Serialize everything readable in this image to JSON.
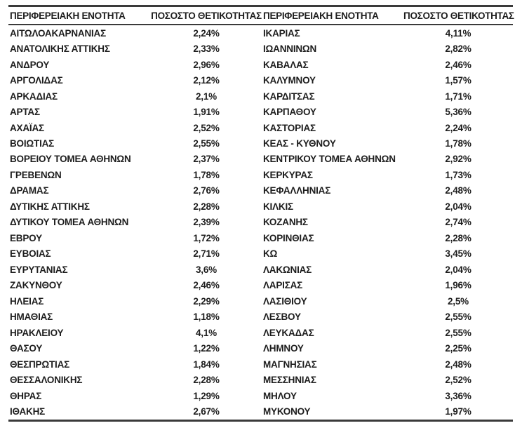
{
  "colors": {
    "text": "#1d1d1d",
    "rule": "#3a3a3a",
    "background": "#ffffff"
  },
  "table": {
    "columns": [
      "ΠΕΡΙΦΕΡΕΙΑΚΗ ΕΝΟΤΗΤΑ",
      "ΠΟΣΟΣΤΟ ΘΕΤΙΚΟΤΗΤΑΣ",
      "ΠΕΡΙΦΕΡΕΙΑΚΗ ΕΝΟΤΗΤΑ",
      "ΠΟΣΟΣΤΟ ΘΕΤΙΚΟΤΗΤΑΣ"
    ],
    "rows": [
      {
        "left_region": "ΑΙΤΩΛΟΑΚΑΡΝΑΝΙΑΣ",
        "left_value": "2,24%",
        "right_region": "ΙΚΑΡΙΑΣ",
        "right_value": "4,11%"
      },
      {
        "left_region": "ΑΝΑΤΟΛΙΚΗΣ ΑΤΤΙΚΗΣ",
        "left_value": "2,33%",
        "right_region": "ΙΩΑΝΝΙΝΩΝ",
        "right_value": "2,82%"
      },
      {
        "left_region": "ΑΝΔΡΟΥ",
        "left_value": "2,96%",
        "right_region": "ΚΑΒΑΛΑΣ",
        "right_value": "2,46%"
      },
      {
        "left_region": "ΑΡΓΟΛΙΔΑΣ",
        "left_value": "2,12%",
        "right_region": "ΚΑΛΥΜΝΟΥ",
        "right_value": "1,57%"
      },
      {
        "left_region": "ΑΡΚΑΔΙΑΣ",
        "left_value": "2,1%",
        "right_region": "ΚΑΡΔΙΤΣΑΣ",
        "right_value": "1,71%"
      },
      {
        "left_region": "ΑΡΤΑΣ",
        "left_value": "1,91%",
        "right_region": "ΚΑΡΠΑΘΟΥ",
        "right_value": "5,36%"
      },
      {
        "left_region": "ΑΧΑΪΑΣ",
        "left_value": "2,52%",
        "right_region": "ΚΑΣΤΟΡΙΑΣ",
        "right_value": "2,24%"
      },
      {
        "left_region": "ΒΟΙΩΤΙΑΣ",
        "left_value": "2,55%",
        "right_region": "ΚΕΑΣ - ΚΥΘΝΟΥ",
        "right_value": "1,78%"
      },
      {
        "left_region": "ΒΟΡΕΙΟΥ ΤΟΜΕΑ ΑΘΗΝΩΝ",
        "left_value": "2,37%",
        "right_region": "ΚΕΝΤΡΙΚΟΥ ΤΟΜΕΑ ΑΘΗΝΩΝ",
        "right_value": "2,92%"
      },
      {
        "left_region": "ΓΡΕΒΕΝΩΝ",
        "left_value": "1,78%",
        "right_region": "ΚΕΡΚΥΡΑΣ",
        "right_value": "1,73%"
      },
      {
        "left_region": "ΔΡΑΜΑΣ",
        "left_value": "2,76%",
        "right_region": "ΚΕΦΑΛΛΗΝΙΑΣ",
        "right_value": "2,48%"
      },
      {
        "left_region": "ΔΥΤΙΚΗΣ ΑΤΤΙΚΗΣ",
        "left_value": "2,28%",
        "right_region": "ΚΙΛΚΙΣ",
        "right_value": "2,04%"
      },
      {
        "left_region": "ΔΥΤΙΚΟΥ ΤΟΜΕΑ ΑΘΗΝΩΝ",
        "left_value": "2,39%",
        "right_region": "ΚΟΖΑΝΗΣ",
        "right_value": "2,74%"
      },
      {
        "left_region": "ΕΒΡΟΥ",
        "left_value": "1,72%",
        "right_region": "ΚΟΡΙΝΘΙΑΣ",
        "right_value": "2,28%"
      },
      {
        "left_region": "ΕΥΒΟΙΑΣ",
        "left_value": "2,71%",
        "right_region": "ΚΩ",
        "right_value": "3,45%"
      },
      {
        "left_region": "ΕΥΡΥΤΑΝΙΑΣ",
        "left_value": "3,6%",
        "right_region": "ΛΑΚΩΝΙΑΣ",
        "right_value": "2,04%"
      },
      {
        "left_region": "ΖΑΚΥΝΘΟΥ",
        "left_value": "2,46%",
        "right_region": "ΛΑΡΙΣΑΣ",
        "right_value": "1,96%"
      },
      {
        "left_region": "ΗΛΕΙΑΣ",
        "left_value": "2,29%",
        "right_region": "ΛΑΣΙΘΙΟΥ",
        "right_value": "2,5%"
      },
      {
        "left_region": "ΗΜΑΘΙΑΣ",
        "left_value": "1,18%",
        "right_region": "ΛΕΣΒΟΥ",
        "right_value": "2,55%"
      },
      {
        "left_region": "ΗΡΑΚΛΕΙΟΥ",
        "left_value": "4,1%",
        "right_region": "ΛΕΥΚΑΔΑΣ",
        "right_value": "2,55%"
      },
      {
        "left_region": "ΘΑΣΟΥ",
        "left_value": "1,22%",
        "right_region": "ΛΗΜΝΟΥ",
        "right_value": "2,25%"
      },
      {
        "left_region": "ΘΕΣΠΡΩΤΙΑΣ",
        "left_value": "1,84%",
        "right_region": "ΜΑΓΝΗΣΙΑΣ",
        "right_value": "2,48%"
      },
      {
        "left_region": "ΘΕΣΣΑΛΟΝΙΚΗΣ",
        "left_value": "2,28%",
        "right_region": "ΜΕΣΣΗΝΙΑΣ",
        "right_value": "2,52%"
      },
      {
        "left_region": "ΘΗΡΑΣ",
        "left_value": "1,29%",
        "right_region": "ΜΗΛΟΥ",
        "right_value": "3,36%"
      },
      {
        "left_region": "ΙΘΑΚΗΣ",
        "left_value": "2,67%",
        "right_region": "ΜΥΚΟΝΟΥ",
        "right_value": "1,97%"
      }
    ]
  }
}
